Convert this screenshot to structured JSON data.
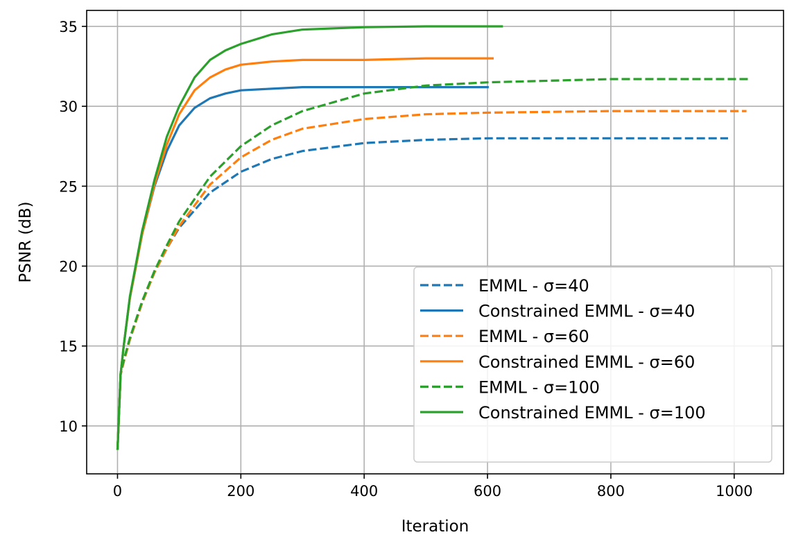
{
  "chart_data": {
    "type": "line",
    "title": "",
    "xlabel": "Iteration",
    "ylabel": "PSNR (dB)",
    "xlim": [
      -50,
      1080
    ],
    "ylim": [
      7,
      36
    ],
    "xticks": [
      0,
      200,
      400,
      600,
      800,
      1000
    ],
    "yticks": [
      10,
      15,
      20,
      25,
      30,
      35
    ],
    "grid": true,
    "legend_position": "lower-right",
    "series": [
      {
        "name": "EMML - σ=40",
        "color": "#1f77b4",
        "style": "dashed",
        "x": [
          0,
          5,
          10,
          20,
          40,
          60,
          80,
          100,
          150,
          200,
          250,
          300,
          400,
          500,
          600,
          800,
          990
        ],
        "y": [
          8.5,
          13.2,
          14.0,
          15.4,
          17.7,
          19.6,
          21.1,
          22.4,
          24.6,
          25.9,
          26.7,
          27.2,
          27.7,
          27.9,
          28.0,
          28.0,
          28.0
        ]
      },
      {
        "name": "Constrained EMML - σ=40",
        "color": "#1f77b4",
        "style": "solid",
        "x": [
          0,
          5,
          10,
          20,
          40,
          60,
          80,
          100,
          125,
          150,
          175,
          200,
          250,
          300,
          400,
          500,
          602
        ],
        "y": [
          8.5,
          13.2,
          15.0,
          18.0,
          22.0,
          25.0,
          27.2,
          28.8,
          29.9,
          30.5,
          30.8,
          31.0,
          31.1,
          31.2,
          31.2,
          31.2,
          31.2
        ]
      },
      {
        "name": "EMML - σ=60",
        "color": "#ff7f0e",
        "style": "dashed",
        "x": [
          0,
          5,
          10,
          20,
          40,
          60,
          80,
          100,
          150,
          200,
          250,
          300,
          400,
          500,
          600,
          800,
          1020
        ],
        "y": [
          8.5,
          13.2,
          14.0,
          15.4,
          17.7,
          19.6,
          21.1,
          22.5,
          25.1,
          26.8,
          27.9,
          28.6,
          29.2,
          29.5,
          29.6,
          29.7,
          29.7
        ]
      },
      {
        "name": "Constrained EMML - σ=60",
        "color": "#ff7f0e",
        "style": "solid",
        "x": [
          0,
          5,
          10,
          20,
          40,
          60,
          80,
          100,
          125,
          150,
          175,
          200,
          250,
          300,
          400,
          500,
          610
        ],
        "y": [
          8.5,
          13.2,
          15.0,
          18.0,
          22.0,
          25.1,
          27.6,
          29.5,
          31.0,
          31.8,
          32.3,
          32.6,
          32.8,
          32.9,
          32.9,
          33.0,
          33.0
        ]
      },
      {
        "name": "EMML - σ=100",
        "color": "#2ca02c",
        "style": "dashed",
        "x": [
          0,
          5,
          10,
          20,
          40,
          60,
          80,
          100,
          150,
          200,
          250,
          300,
          400,
          500,
          600,
          800,
          1025
        ],
        "y": [
          8.5,
          13.3,
          14.1,
          15.5,
          17.8,
          19.7,
          21.3,
          22.8,
          25.6,
          27.5,
          28.8,
          29.7,
          30.8,
          31.3,
          31.5,
          31.7,
          31.7
        ]
      },
      {
        "name": "Constrained EMML - σ=100",
        "color": "#2ca02c",
        "style": "solid",
        "x": [
          0,
          5,
          10,
          20,
          40,
          60,
          80,
          100,
          125,
          150,
          175,
          200,
          250,
          300,
          400,
          500,
          625
        ],
        "y": [
          8.5,
          13.2,
          15.0,
          18.1,
          22.2,
          25.4,
          28.1,
          30.0,
          31.8,
          32.9,
          33.5,
          33.9,
          34.5,
          34.8,
          34.95,
          35.0,
          35.0
        ]
      }
    ]
  }
}
